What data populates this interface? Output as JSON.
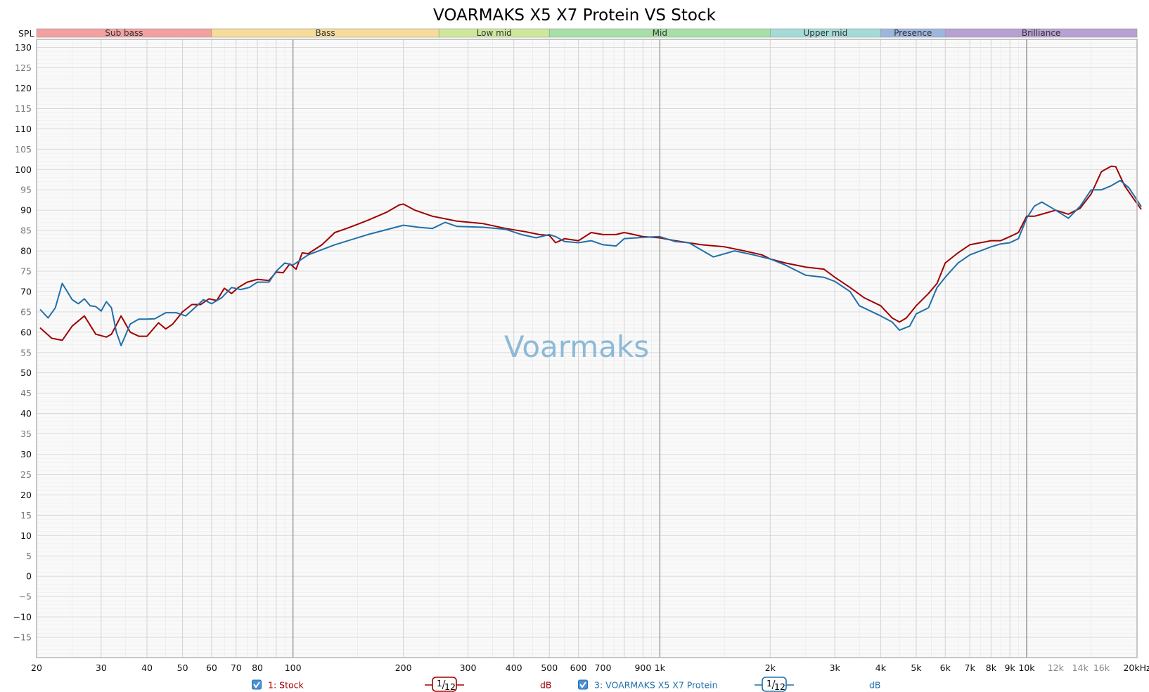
{
  "chart_data": {
    "type": "line",
    "title": "VOARMAKS X5 X7 Protein VS Stock",
    "ylabel": "SPL",
    "ylim": [
      -20,
      132
    ],
    "xlim": [
      20,
      20000
    ],
    "xscale": "log",
    "grid": true,
    "watermark": "Voarmaks",
    "y_ticks": [
      "130",
      "125",
      "120",
      "115",
      "110",
      "105",
      "100",
      "95",
      "90",
      "85",
      "80",
      "75",
      "70",
      "65",
      "60",
      "55",
      "50",
      "45",
      "40",
      "35",
      "30",
      "25",
      "20",
      "15",
      "10",
      "5",
      "0",
      "−5",
      "−10",
      "−15"
    ],
    "x_tick_labels": [
      {
        "f": 20,
        "label": "20",
        "minor": false
      },
      {
        "f": 30,
        "label": "30",
        "minor": false
      },
      {
        "f": 40,
        "label": "40",
        "minor": false
      },
      {
        "f": 50,
        "label": "50",
        "minor": false
      },
      {
        "f": 60,
        "label": "60",
        "minor": false
      },
      {
        "f": 70,
        "label": "70",
        "minor": false
      },
      {
        "f": 80,
        "label": "80",
        "minor": false
      },
      {
        "f": 100,
        "label": "100",
        "minor": false
      },
      {
        "f": 200,
        "label": "200",
        "minor": false
      },
      {
        "f": 300,
        "label": "300",
        "minor": false
      },
      {
        "f": 400,
        "label": "400",
        "minor": false
      },
      {
        "f": 500,
        "label": "500",
        "minor": false
      },
      {
        "f": 600,
        "label": "600",
        "minor": false
      },
      {
        "f": 700,
        "label": "700",
        "minor": false
      },
      {
        "f": 900,
        "label": "900",
        "minor": false
      },
      {
        "f": 1000,
        "label": "1k",
        "minor": false
      },
      {
        "f": 2000,
        "label": "2k",
        "minor": false
      },
      {
        "f": 3000,
        "label": "3k",
        "minor": false
      },
      {
        "f": 4000,
        "label": "4k",
        "minor": false
      },
      {
        "f": 5000,
        "label": "5k",
        "minor": false
      },
      {
        "f": 6000,
        "label": "6k",
        "minor": false
      },
      {
        "f": 7000,
        "label": "7k",
        "minor": false
      },
      {
        "f": 8000,
        "label": "8k",
        "minor": false
      },
      {
        "f": 9000,
        "label": "9k",
        "minor": false
      },
      {
        "f": 10000,
        "label": "10k",
        "minor": false
      },
      {
        "f": 12000,
        "label": "12k",
        "minor": true
      },
      {
        "f": 14000,
        "label": "14k",
        "minor": true
      },
      {
        "f": 16000,
        "label": "16k",
        "minor": true
      },
      {
        "f": 20000,
        "label": "20kHz",
        "minor": false
      }
    ],
    "bands": [
      {
        "name": "Sub bass",
        "from": 20,
        "to": 60,
        "color": "#f4a0a0"
      },
      {
        "name": "Bass",
        "from": 60,
        "to": 250,
        "color": "#f6dc98"
      },
      {
        "name": "Low mid",
        "from": 250,
        "to": 500,
        "color": "#cde89a"
      },
      {
        "name": "Mid",
        "from": 500,
        "to": 2000,
        "color": "#a6e0a6"
      },
      {
        "name": "Upper mid",
        "from": 2000,
        "to": 4000,
        "color": "#a3dcd7"
      },
      {
        "name": "Presence",
        "from": 4000,
        "to": 6000,
        "color": "#9db6e0"
      },
      {
        "name": "Brilliance",
        "from": 6000,
        "to": 20000,
        "color": "#b7a0d2"
      }
    ],
    "series": [
      {
        "name": "1: Stock",
        "color": "#a00000",
        "legend_smoothing": "1/12",
        "legend_unit": "dB",
        "points": [
          [
            20.5,
            61
          ],
          [
            22,
            58.5
          ],
          [
            23.5,
            58
          ],
          [
            25,
            61.5
          ],
          [
            27,
            64
          ],
          [
            29,
            59.5
          ],
          [
            31,
            58.8
          ],
          [
            32,
            59.5
          ],
          [
            34,
            64
          ],
          [
            36,
            60
          ],
          [
            38,
            59
          ],
          [
            40,
            59
          ],
          [
            43,
            62.3
          ],
          [
            45,
            60.8
          ],
          [
            47,
            62
          ],
          [
            50,
            65
          ],
          [
            53,
            66.8
          ],
          [
            56,
            66.8
          ],
          [
            59,
            68.2
          ],
          [
            62,
            67.8
          ],
          [
            65,
            70.8
          ],
          [
            68,
            69.5
          ],
          [
            71,
            71
          ],
          [
            75,
            72.3
          ],
          [
            80,
            73
          ],
          [
            86,
            72.7
          ],
          [
            90,
            74.8
          ],
          [
            94,
            74.6
          ],
          [
            98,
            76.8
          ],
          [
            102,
            75.5
          ],
          [
            106,
            79.5
          ],
          [
            110,
            79.3
          ],
          [
            120,
            81.5
          ],
          [
            130,
            84.5
          ],
          [
            140,
            85.5
          ],
          [
            160,
            87.5
          ],
          [
            180,
            89.5
          ],
          [
            195,
            91.3
          ],
          [
            200,
            91.5
          ],
          [
            215,
            90
          ],
          [
            240,
            88.5
          ],
          [
            280,
            87.3
          ],
          [
            330,
            86.7
          ],
          [
            380,
            85.5
          ],
          [
            430,
            84.7
          ],
          [
            470,
            84
          ],
          [
            500,
            83.8
          ],
          [
            520,
            82
          ],
          [
            550,
            83
          ],
          [
            600,
            82.5
          ],
          [
            650,
            84.5
          ],
          [
            700,
            84
          ],
          [
            760,
            84
          ],
          [
            800,
            84.5
          ],
          [
            850,
            84
          ],
          [
            900,
            83.5
          ],
          [
            1000,
            83.2
          ],
          [
            1100,
            82.5
          ],
          [
            1300,
            81.5
          ],
          [
            1500,
            81
          ],
          [
            1700,
            80
          ],
          [
            1900,
            79
          ],
          [
            2000,
            78
          ],
          [
            2200,
            77
          ],
          [
            2500,
            76
          ],
          [
            2800,
            75.5
          ],
          [
            3000,
            73.5
          ],
          [
            3300,
            71
          ],
          [
            3600,
            68.5
          ],
          [
            4000,
            66.5
          ],
          [
            4300,
            63.5
          ],
          [
            4500,
            62.5
          ],
          [
            4700,
            63.5
          ],
          [
            5000,
            66.5
          ],
          [
            5400,
            69.5
          ],
          [
            5700,
            72
          ],
          [
            6000,
            77
          ],
          [
            6500,
            79.5
          ],
          [
            7000,
            81.5
          ],
          [
            8000,
            82.5
          ],
          [
            8500,
            82.5
          ],
          [
            9000,
            83.5
          ],
          [
            9500,
            84.5
          ],
          [
            10000,
            88.5
          ],
          [
            10500,
            88.5
          ],
          [
            11000,
            89
          ],
          [
            12000,
            90
          ],
          [
            12500,
            89.5
          ],
          [
            13000,
            89
          ],
          [
            14000,
            90.5
          ],
          [
            15000,
            94
          ],
          [
            16000,
            99.5
          ],
          [
            17000,
            100.8
          ],
          [
            17500,
            100.7
          ],
          [
            18500,
            96
          ],
          [
            19500,
            93
          ],
          [
            20500,
            90.3
          ]
        ]
      },
      {
        "name": "3: VOARMAKS X5 X7 Protein",
        "color": "#2070aa",
        "legend_smoothing": "1/12",
        "legend_unit": "dB",
        "points": [
          [
            20.5,
            65.5
          ],
          [
            21.5,
            63.5
          ],
          [
            22.5,
            66
          ],
          [
            23.5,
            72
          ],
          [
            25,
            68
          ],
          [
            26,
            67
          ],
          [
            27,
            68.2
          ],
          [
            28,
            66.5
          ],
          [
            29,
            66.3
          ],
          [
            30,
            65.2
          ],
          [
            31,
            67.5
          ],
          [
            32,
            66
          ],
          [
            33,
            60
          ],
          [
            34,
            56.7
          ],
          [
            36,
            62
          ],
          [
            38,
            63.2
          ],
          [
            40,
            63.2
          ],
          [
            42,
            63.3
          ],
          [
            45,
            64.8
          ],
          [
            48,
            64.8
          ],
          [
            51,
            64
          ],
          [
            54,
            66
          ],
          [
            57,
            68
          ],
          [
            60,
            67
          ],
          [
            64,
            68.5
          ],
          [
            68,
            71
          ],
          [
            72,
            70.5
          ],
          [
            76,
            71
          ],
          [
            80,
            72.3
          ],
          [
            86,
            72.3
          ],
          [
            90,
            75
          ],
          [
            95,
            77
          ],
          [
            100,
            76.5
          ],
          [
            110,
            79
          ],
          [
            130,
            81.5
          ],
          [
            160,
            84
          ],
          [
            200,
            86.3
          ],
          [
            220,
            85.8
          ],
          [
            240,
            85.5
          ],
          [
            260,
            87
          ],
          [
            280,
            86
          ],
          [
            330,
            85.8
          ],
          [
            380,
            85.3
          ],
          [
            420,
            84
          ],
          [
            460,
            83.2
          ],
          [
            500,
            84
          ],
          [
            520,
            83.5
          ],
          [
            550,
            82.3
          ],
          [
            600,
            82
          ],
          [
            650,
            82.5
          ],
          [
            700,
            81.5
          ],
          [
            760,
            81.2
          ],
          [
            800,
            83
          ],
          [
            900,
            83.3
          ],
          [
            1000,
            83.5
          ],
          [
            1100,
            82.3
          ],
          [
            1200,
            82
          ],
          [
            1400,
            78.5
          ],
          [
            1600,
            80
          ],
          [
            1800,
            79
          ],
          [
            2000,
            78
          ],
          [
            2200,
            76.5
          ],
          [
            2500,
            74
          ],
          [
            2800,
            73.5
          ],
          [
            3000,
            72.5
          ],
          [
            3300,
            70
          ],
          [
            3500,
            66.5
          ],
          [
            4000,
            64
          ],
          [
            4300,
            62.5
          ],
          [
            4500,
            60.5
          ],
          [
            4800,
            61.5
          ],
          [
            5000,
            64.5
          ],
          [
            5400,
            66
          ],
          [
            5700,
            71
          ],
          [
            6000,
            73.5
          ],
          [
            6500,
            77
          ],
          [
            7000,
            79
          ],
          [
            8000,
            81
          ],
          [
            8500,
            81.7
          ],
          [
            9000,
            82
          ],
          [
            9500,
            83
          ],
          [
            10000,
            88
          ],
          [
            10500,
            91
          ],
          [
            11000,
            92
          ],
          [
            12000,
            90
          ],
          [
            13000,
            88
          ],
          [
            14000,
            91
          ],
          [
            15000,
            95
          ],
          [
            16000,
            95
          ],
          [
            17000,
            96
          ],
          [
            18000,
            97.3
          ],
          [
            19000,
            95.5
          ],
          [
            20500,
            91
          ]
        ]
      }
    ],
    "legend": [
      {
        "series": 0,
        "label": "1: Stock",
        "checked": true,
        "smoothing_num": "1",
        "smoothing_den": "12",
        "unit": "dB"
      },
      {
        "series": 1,
        "label": "3: VOARMAKS X5 X7 Protein",
        "checked": true,
        "smoothing_num": "1",
        "smoothing_den": "12",
        "unit": "dB"
      }
    ]
  }
}
